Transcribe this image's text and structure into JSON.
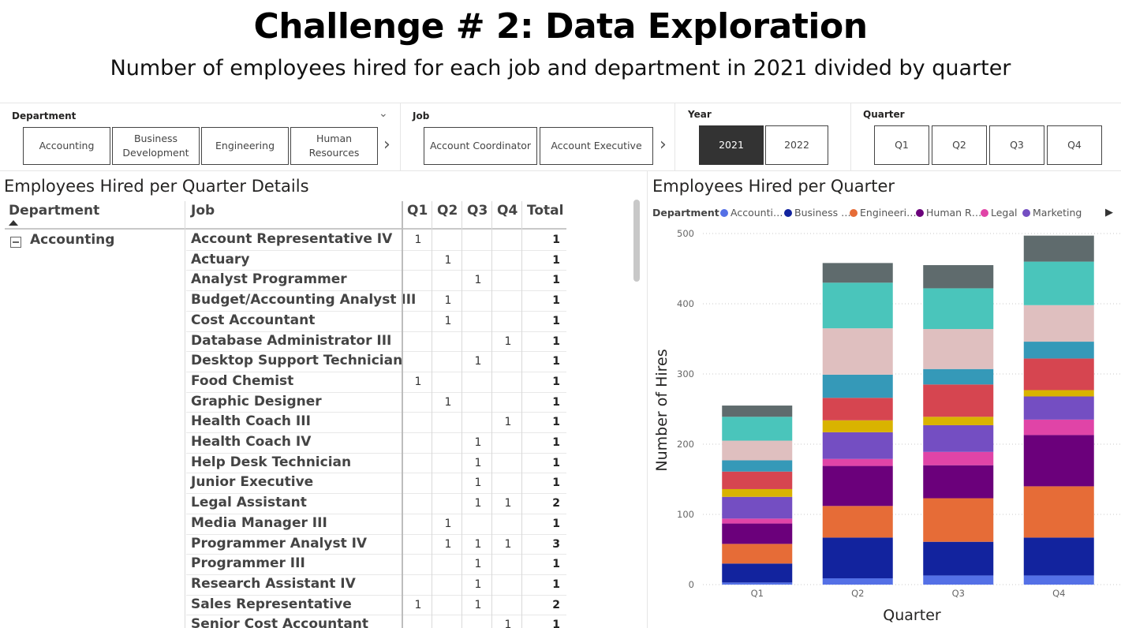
{
  "header": {
    "title": "Challenge # 2: Data Exploration",
    "subtitle": "Number of employees hired for each job and department in 2021 divided by quarter"
  },
  "slicers": {
    "department": {
      "label": "Department",
      "tiles": [
        "Accounting",
        "Business Development",
        "Engineering",
        "Human Resources"
      ]
    },
    "job": {
      "label": "Job",
      "tiles": [
        "Account Coordinator",
        "Account Executive"
      ]
    },
    "year": {
      "label": "Year",
      "tiles": [
        "2021",
        "2022"
      ],
      "selected": "2021"
    },
    "quarter": {
      "label": "Quarter",
      "tiles": [
        "Q1",
        "Q2",
        "Q3",
        "Q4"
      ]
    }
  },
  "matrix": {
    "title": "Employees Hired per Quarter Details",
    "headers": {
      "department": "Department",
      "job": "Job",
      "q1": "Q1",
      "q2": "Q2",
      "q3": "Q3",
      "q4": "Q4",
      "total": "Total"
    },
    "group": "Accounting",
    "rows": [
      {
        "job": "Account Representative IV",
        "q1": "1",
        "q2": "",
        "q3": "",
        "q4": "",
        "total": "1"
      },
      {
        "job": "Actuary",
        "q1": "",
        "q2": "1",
        "q3": "",
        "q4": "",
        "total": "1"
      },
      {
        "job": "Analyst Programmer",
        "q1": "",
        "q2": "",
        "q3": "1",
        "q4": "",
        "total": "1"
      },
      {
        "job": "Budget/Accounting Analyst III",
        "q1": "",
        "q2": "1",
        "q3": "",
        "q4": "",
        "total": "1"
      },
      {
        "job": "Cost Accountant",
        "q1": "",
        "q2": "1",
        "q3": "",
        "q4": "",
        "total": "1"
      },
      {
        "job": "Database Administrator III",
        "q1": "",
        "q2": "",
        "q3": "",
        "q4": "1",
        "total": "1"
      },
      {
        "job": "Desktop Support Technician",
        "q1": "",
        "q2": "",
        "q3": "1",
        "q4": "",
        "total": "1"
      },
      {
        "job": "Food Chemist",
        "q1": "1",
        "q2": "",
        "q3": "",
        "q4": "",
        "total": "1"
      },
      {
        "job": "Graphic Designer",
        "q1": "",
        "q2": "1",
        "q3": "",
        "q4": "",
        "total": "1"
      },
      {
        "job": "Health Coach III",
        "q1": "",
        "q2": "",
        "q3": "",
        "q4": "1",
        "total": "1"
      },
      {
        "job": "Health Coach IV",
        "q1": "",
        "q2": "",
        "q3": "1",
        "q4": "",
        "total": "1"
      },
      {
        "job": "Help Desk Technician",
        "q1": "",
        "q2": "",
        "q3": "1",
        "q4": "",
        "total": "1"
      },
      {
        "job": "Junior Executive",
        "q1": "",
        "q2": "",
        "q3": "1",
        "q4": "",
        "total": "1"
      },
      {
        "job": "Legal Assistant",
        "q1": "",
        "q2": "",
        "q3": "1",
        "q4": "1",
        "total": "2"
      },
      {
        "job": "Media Manager III",
        "q1": "",
        "q2": "1",
        "q3": "",
        "q4": "",
        "total": "1"
      },
      {
        "job": "Programmer Analyst IV",
        "q1": "",
        "q2": "1",
        "q3": "1",
        "q4": "1",
        "total": "3"
      },
      {
        "job": "Programmer III",
        "q1": "",
        "q2": "",
        "q3": "1",
        "q4": "",
        "total": "1"
      },
      {
        "job": "Research Assistant IV",
        "q1": "",
        "q2": "",
        "q3": "1",
        "q4": "",
        "total": "1"
      },
      {
        "job": "Sales Representative",
        "q1": "1",
        "q2": "",
        "q3": "1",
        "q4": "",
        "total": "2"
      },
      {
        "job": "Senior Cost Accountant",
        "q1": "",
        "q2": "",
        "q3": "",
        "q4": "1",
        "total": "1"
      }
    ]
  },
  "chart_data": {
    "type": "bar",
    "stacked": true,
    "title": "Employees Hired per Quarter",
    "xlabel": "Quarter",
    "ylabel": "Number of Hires",
    "ylim": [
      0,
      500
    ],
    "yticks": [
      0,
      100,
      200,
      300,
      400,
      500
    ],
    "grid": true,
    "legend_title": "Department",
    "legend_position": "top",
    "categories": [
      "Q1",
      "Q2",
      "Q3",
      "Q4"
    ],
    "series": [
      {
        "name": "Accounti…",
        "color": "#5470e6",
        "values": [
          3,
          9,
          13,
          13
        ]
      },
      {
        "name": "Business …",
        "color": "#12239e",
        "values": [
          27,
          58,
          48,
          54
        ]
      },
      {
        "name": "Engineeri…",
        "color": "#e66c37",
        "values": [
          28,
          45,
          62,
          73
        ]
      },
      {
        "name": "Human R…",
        "color": "#6b007b",
        "values": [
          29,
          57,
          47,
          73
        ]
      },
      {
        "name": "Legal",
        "color": "#e044a7",
        "values": [
          7,
          10,
          19,
          22
        ]
      },
      {
        "name": "Marketing",
        "color": "#744ec2",
        "values": [
          31,
          38,
          38,
          33
        ]
      },
      {
        "color": "#d9b300",
        "values": [
          11,
          17,
          12,
          9
        ]
      },
      {
        "color": "#d64550",
        "values": [
          25,
          32,
          46,
          45
        ]
      },
      {
        "color": "#3599b8",
        "values": [
          16,
          33,
          22,
          24
        ]
      },
      {
        "color": "#dfbfbf",
        "values": [
          28,
          66,
          57,
          52
        ]
      },
      {
        "color": "#4ac5bb",
        "values": [
          34,
          65,
          58,
          62
        ]
      },
      {
        "color": "#5f6b6d",
        "values": [
          16,
          28,
          33,
          37
        ]
      }
    ]
  }
}
